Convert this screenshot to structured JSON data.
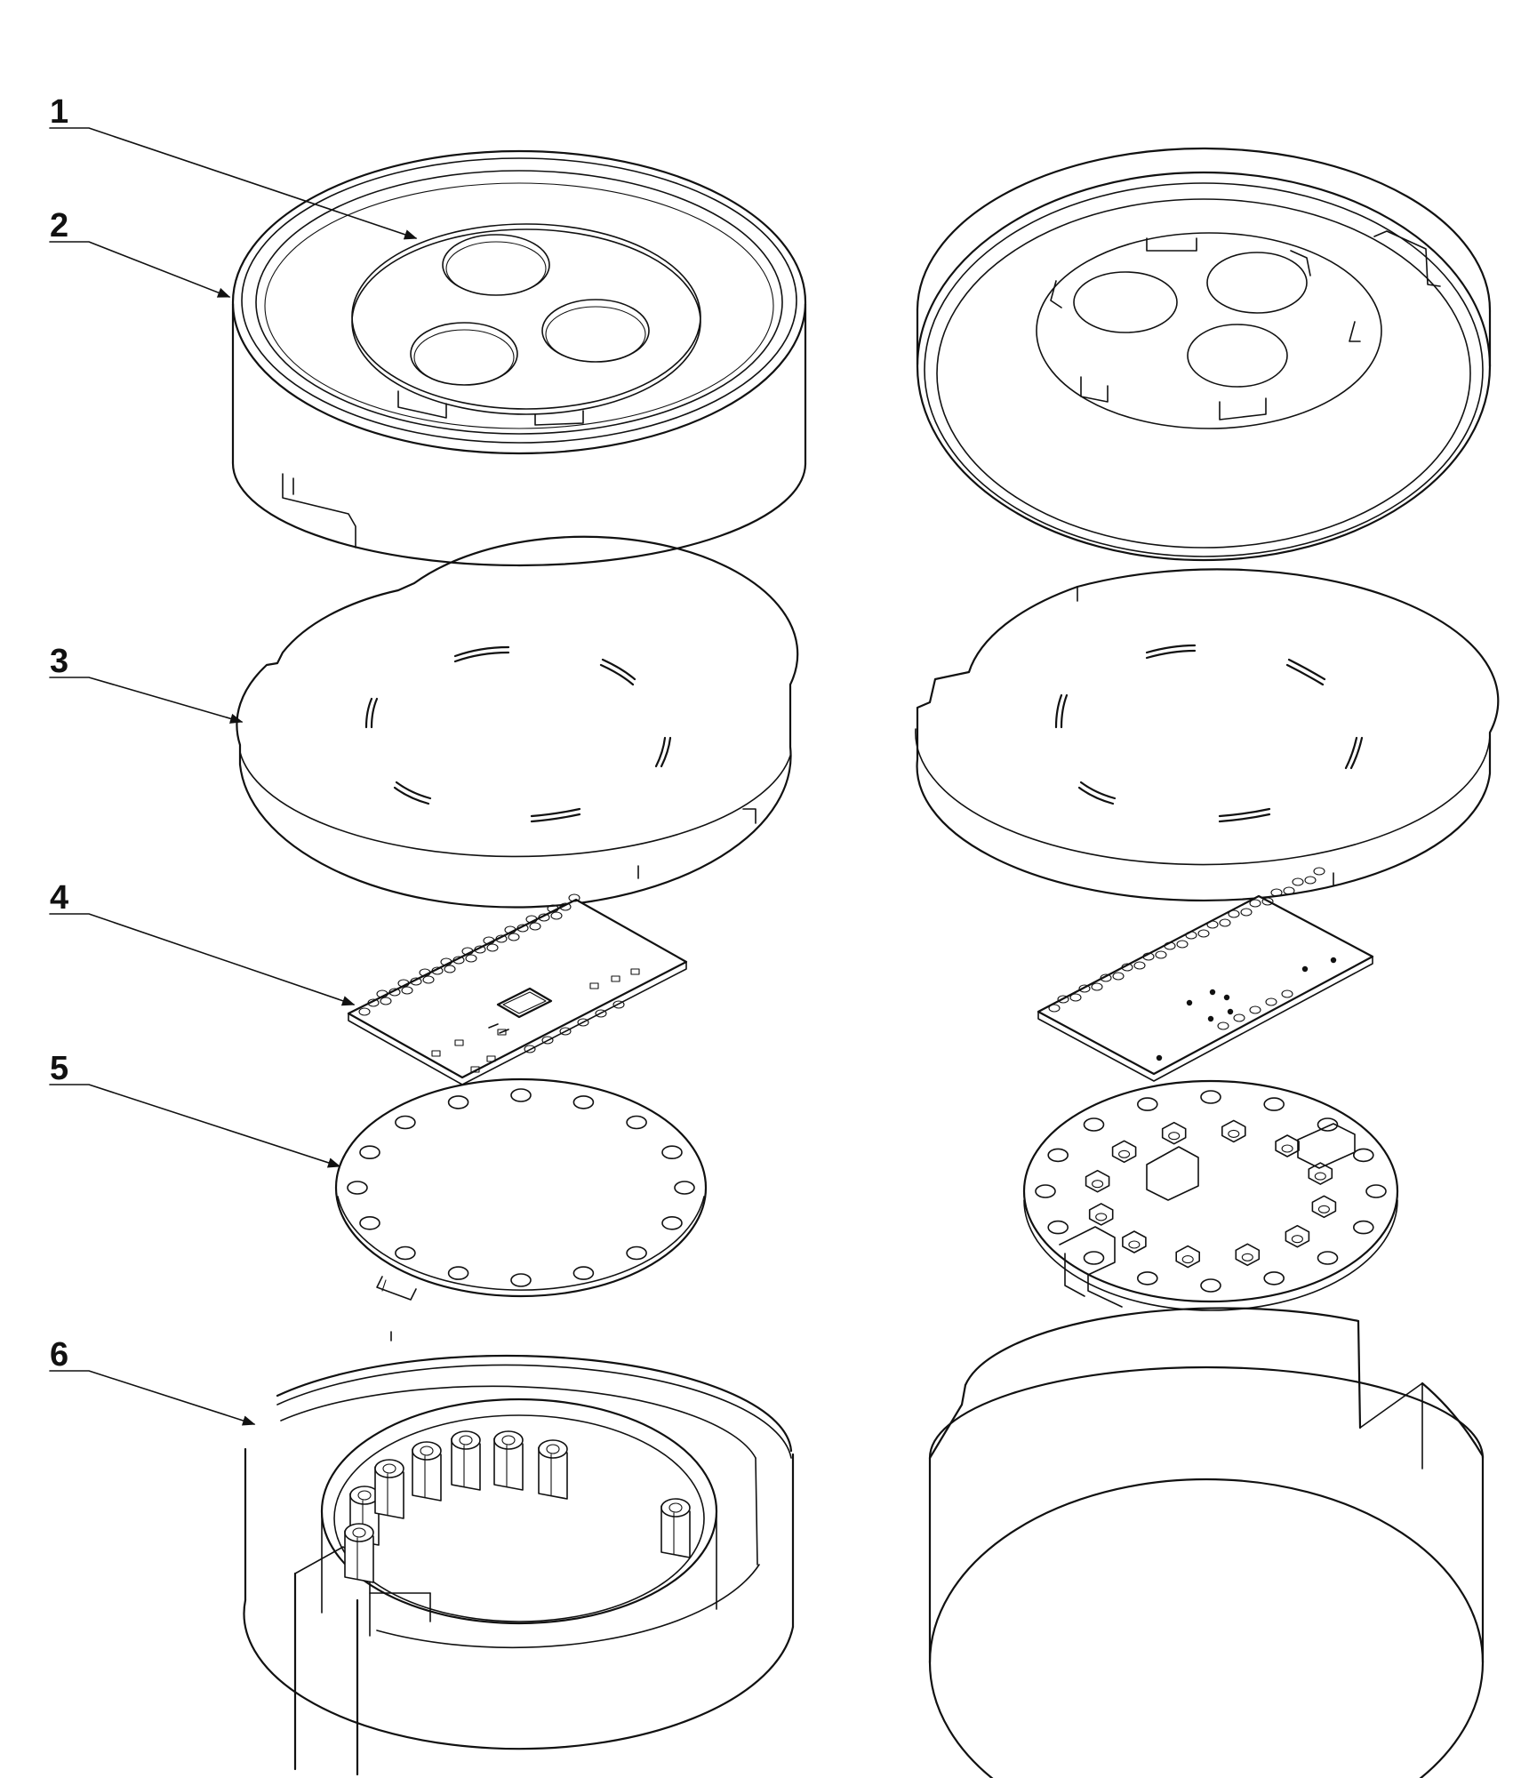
{
  "callouts": [
    {
      "id": "1",
      "label": "1"
    },
    {
      "id": "2",
      "label": "2"
    },
    {
      "id": "3",
      "label": "3"
    },
    {
      "id": "4",
      "label": "4"
    },
    {
      "id": "5",
      "label": "5"
    },
    {
      "id": "6",
      "label": "6"
    }
  ],
  "style": {
    "line_color": "#111111",
    "background": "#ffffff"
  }
}
